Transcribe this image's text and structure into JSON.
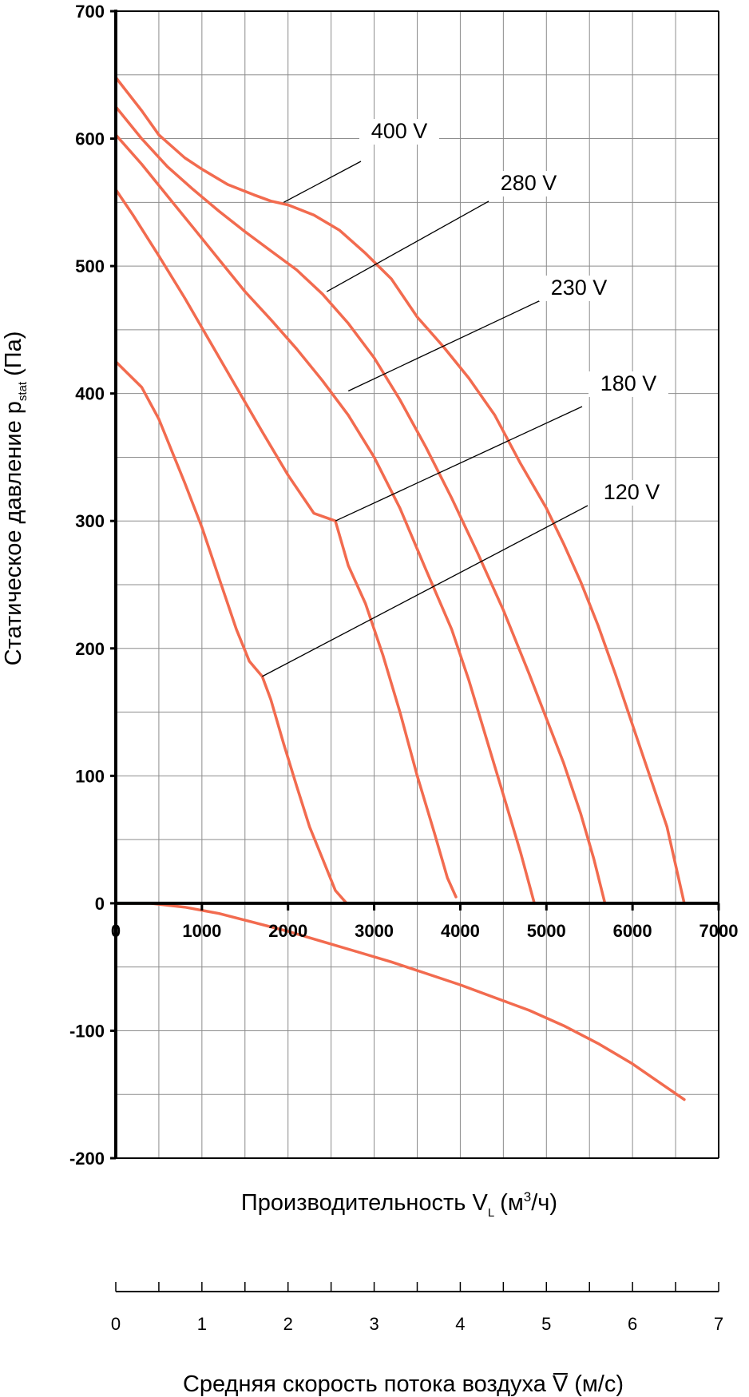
{
  "chart_data": {
    "type": "line",
    "ylabel": "Статическое давление p",
    "ylabel_sub": "stat",
    "ylabel_unit": "(Па)",
    "xlabel": "Производительность V",
    "xlabel_sub": "L",
    "xlabel_unit_open": "(м",
    "xlabel_unit_sup": "3",
    "xlabel_unit_close": "/ч)",
    "x2label": "Средняя скорость потока воздуха",
    "x2label_symbol": "V",
    "x2label_unit": "(м/с)",
    "xlim": [
      0,
      7000
    ],
    "ylim": [
      -200,
      700
    ],
    "x2lim": [
      0,
      7
    ],
    "x_ticks": [
      "0",
      "1000",
      "2000",
      "3000",
      "4000",
      "5000",
      "6000",
      "7000"
    ],
    "y_ticks": [
      "700",
      "600",
      "500",
      "400",
      "300",
      "200",
      "100",
      "0",
      "-100",
      "-200"
    ],
    "x2_ticks": [
      "0",
      "1",
      "2",
      "3",
      "4",
      "5",
      "6",
      "7"
    ],
    "grid": true,
    "line_color": "#f26b4f",
    "series": [
      {
        "name": "400 V",
        "label_at": [
          1950,
          550
        ],
        "points": [
          [
            0,
            648
          ],
          [
            300,
            622
          ],
          [
            500,
            603
          ],
          [
            800,
            585
          ],
          [
            1000,
            576
          ],
          [
            1300,
            564
          ],
          [
            1600,
            556
          ],
          [
            1800,
            551
          ],
          [
            2000,
            548
          ],
          [
            2300,
            540
          ],
          [
            2600,
            528
          ],
          [
            2900,
            510
          ],
          [
            3200,
            490
          ],
          [
            3500,
            460
          ],
          [
            3800,
            437
          ],
          [
            4100,
            412
          ],
          [
            4400,
            383
          ],
          [
            4700,
            345
          ],
          [
            5000,
            310
          ],
          [
            5200,
            282
          ],
          [
            5400,
            252
          ],
          [
            5600,
            218
          ],
          [
            5800,
            180
          ],
          [
            6000,
            140
          ],
          [
            6200,
            100
          ],
          [
            6400,
            60
          ],
          [
            6500,
            30
          ],
          [
            6600,
            0
          ]
        ]
      },
      {
        "name": "280 V",
        "label_at": [
          2450,
          480
        ],
        "points": [
          [
            0,
            625
          ],
          [
            300,
            600
          ],
          [
            600,
            578
          ],
          [
            900,
            560
          ],
          [
            1200,
            543
          ],
          [
            1500,
            527
          ],
          [
            1800,
            512
          ],
          [
            2100,
            497
          ],
          [
            2400,
            478
          ],
          [
            2700,
            455
          ],
          [
            3000,
            428
          ],
          [
            3300,
            395
          ],
          [
            3600,
            358
          ],
          [
            3900,
            318
          ],
          [
            4200,
            275
          ],
          [
            4500,
            230
          ],
          [
            4800,
            180
          ],
          [
            5000,
            145
          ],
          [
            5200,
            110
          ],
          [
            5400,
            70
          ],
          [
            5550,
            35
          ],
          [
            5680,
            0
          ]
        ]
      },
      {
        "name": "230 V",
        "label_at": [
          2700,
          402
        ],
        "points": [
          [
            0,
            603
          ],
          [
            300,
            580
          ],
          [
            600,
            555
          ],
          [
            900,
            530
          ],
          [
            1200,
            505
          ],
          [
            1500,
            480
          ],
          [
            1800,
            458
          ],
          [
            2100,
            435
          ],
          [
            2400,
            410
          ],
          [
            2700,
            383
          ],
          [
            3000,
            350
          ],
          [
            3300,
            310
          ],
          [
            3600,
            262
          ],
          [
            3900,
            215
          ],
          [
            4100,
            175
          ],
          [
            4300,
            130
          ],
          [
            4500,
            85
          ],
          [
            4700,
            40
          ],
          [
            4860,
            0
          ]
        ]
      },
      {
        "name": "180 V",
        "label_at": [
          2550,
          300
        ],
        "points": [
          [
            0,
            560
          ],
          [
            200,
            540
          ],
          [
            500,
            508
          ],
          [
            800,
            475
          ],
          [
            1100,
            440
          ],
          [
            1400,
            405
          ],
          [
            1700,
            370
          ],
          [
            2000,
            336
          ],
          [
            2300,
            306
          ],
          [
            2550,
            300
          ],
          [
            2700,
            265
          ],
          [
            2900,
            235
          ],
          [
            3100,
            195
          ],
          [
            3300,
            150
          ],
          [
            3500,
            100
          ],
          [
            3700,
            55
          ],
          [
            3850,
            20
          ],
          [
            3950,
            5
          ]
        ]
      },
      {
        "name": "120 V",
        "label_at": [
          1700,
          178
        ],
        "points": [
          [
            0,
            425
          ],
          [
            300,
            405
          ],
          [
            500,
            380
          ],
          [
            800,
            330
          ],
          [
            1000,
            295
          ],
          [
            1200,
            255
          ],
          [
            1400,
            215
          ],
          [
            1550,
            190
          ],
          [
            1700,
            178
          ],
          [
            1800,
            160
          ],
          [
            1950,
            125
          ],
          [
            2100,
            92
          ],
          [
            2250,
            60
          ],
          [
            2400,
            35
          ],
          [
            2550,
            10
          ],
          [
            2680,
            0
          ]
        ]
      },
      {
        "points": [
          [
            0,
            0
          ],
          [
            400,
            0
          ],
          [
            800,
            -3
          ],
          [
            1200,
            -8
          ],
          [
            1600,
            -15
          ],
          [
            2000,
            -22
          ],
          [
            2400,
            -30
          ],
          [
            2800,
            -38
          ],
          [
            3200,
            -46
          ],
          [
            3600,
            -55
          ],
          [
            4000,
            -64
          ],
          [
            4400,
            -74
          ],
          [
            4800,
            -84
          ],
          [
            5200,
            -96
          ],
          [
            5600,
            -110
          ],
          [
            6000,
            -126
          ],
          [
            6300,
            -140
          ],
          [
            6600,
            -154
          ]
        ]
      }
    ]
  }
}
